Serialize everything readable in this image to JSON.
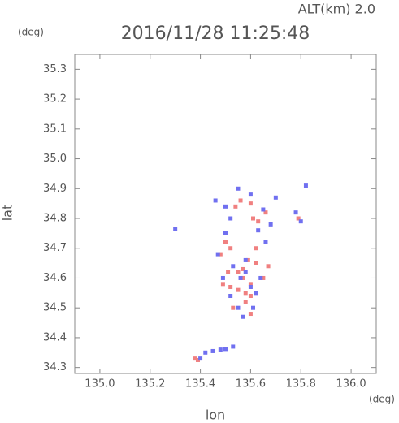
{
  "chart_data": {
    "type": "scatter",
    "title": "2016/11/28 11:25:48",
    "subtitle": "ALT(km) 2.0",
    "y_unit": "(deg)",
    "x_unit": "(deg)",
    "x_label": "lon",
    "y_label": "lat",
    "xlim": [
      134.9,
      136.1
    ],
    "ylim": [
      34.28,
      35.35
    ],
    "xticks": [
      {
        "value": 135.0,
        "label": "135.0"
      },
      135.2,
      135.4,
      135.6,
      135.8,
      {
        "value": 136.0,
        "label": "136.0"
      }
    ],
    "yticks": [
      34.3,
      34.4,
      34.5,
      34.6,
      34.7,
      34.8,
      34.9,
      {
        "value": 35.0,
        "label": "35.0"
      },
      35.1,
      35.2,
      35.3
    ],
    "series": [
      {
        "color": "#f08080",
        "x": [
          135.39,
          135.38,
          135.5,
          135.52,
          135.48,
          135.55,
          135.57,
          135.6,
          135.62,
          135.58,
          135.53,
          135.51,
          135.61,
          135.63,
          135.55,
          135.58,
          135.6,
          135.49,
          135.65,
          135.67,
          135.59,
          135.62,
          135.56,
          135.54,
          135.6,
          135.66,
          135.79,
          135.6,
          135.52,
          135.57
        ],
        "y": [
          34.325,
          34.33,
          34.72,
          34.7,
          34.68,
          34.62,
          34.6,
          34.58,
          34.65,
          34.55,
          34.5,
          34.62,
          34.8,
          34.79,
          34.56,
          34.52,
          34.48,
          34.58,
          34.6,
          34.64,
          34.66,
          34.7,
          34.86,
          34.84,
          34.85,
          34.82,
          34.8,
          34.54,
          34.57,
          34.63
        ]
      },
      {
        "color": "#7070f0",
        "x": [
          135.42,
          135.45,
          135.48,
          135.5,
          135.53,
          135.3,
          135.5,
          135.47,
          135.53,
          135.56,
          135.58,
          135.6,
          135.62,
          135.64,
          135.55,
          135.52,
          135.57,
          135.61,
          135.66,
          135.68,
          135.78,
          135.8,
          135.63,
          135.5,
          135.46,
          135.52,
          135.6,
          135.65,
          135.7,
          135.55,
          135.49,
          135.58,
          135.82,
          135.4
        ],
        "y": [
          34.35,
          34.355,
          34.36,
          34.362,
          34.37,
          34.765,
          34.75,
          34.68,
          34.64,
          34.6,
          34.62,
          34.57,
          34.55,
          34.6,
          34.5,
          34.54,
          34.47,
          34.5,
          34.72,
          34.78,
          34.82,
          34.79,
          34.76,
          34.84,
          34.86,
          34.8,
          34.88,
          34.83,
          34.87,
          34.9,
          34.6,
          34.66,
          34.91,
          34.33
        ]
      }
    ]
  }
}
